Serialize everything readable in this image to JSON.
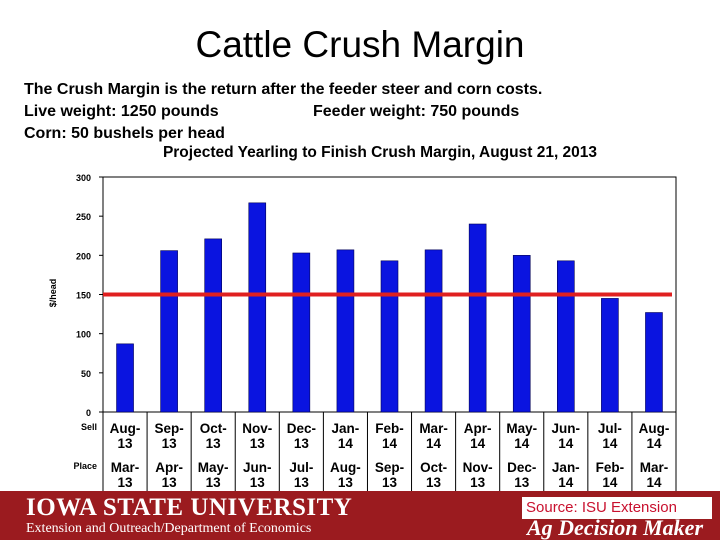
{
  "slide": {
    "title": "Cattle Crush Margin",
    "desc_line1": "The Crush Margin is the return after the feeder steer and corn costs.",
    "desc_live": "Live weight:  1250 pounds",
    "desc_feeder": "Feeder weight:  750 pounds",
    "desc_corn": "Corn:  50 bushels per head"
  },
  "chart_data": {
    "type": "bar",
    "title": "Projected Yearling to Finish Crush Margin, August 21, 2013",
    "ylabel": "$/head",
    "ylim": [
      0,
      300
    ],
    "yticks": [
      0,
      50,
      100,
      150,
      200,
      250,
      300
    ],
    "row_labels": {
      "sell": "Sell",
      "place": "Place"
    },
    "sell_months": [
      [
        "Aug-",
        "13"
      ],
      [
        "Sep-",
        "13"
      ],
      [
        "Oct-",
        "13"
      ],
      [
        "Nov-",
        "13"
      ],
      [
        "Dec-",
        "13"
      ],
      [
        "Jan-",
        "14"
      ],
      [
        "Feb-",
        "14"
      ],
      [
        "Mar-",
        "14"
      ],
      [
        "Apr-",
        "14"
      ],
      [
        "May-",
        "14"
      ],
      [
        "Jun-",
        "14"
      ],
      [
        "Jul-",
        "14"
      ],
      [
        "Aug-",
        "14"
      ]
    ],
    "place_months": [
      [
        "Mar-",
        "13"
      ],
      [
        "Apr-",
        "13"
      ],
      [
        "May-",
        "13"
      ],
      [
        "Jun-",
        "13"
      ],
      [
        "Jul-",
        "13"
      ],
      [
        "Aug-",
        "13"
      ],
      [
        "Sep-",
        "13"
      ],
      [
        "Oct-",
        "13"
      ],
      [
        "Nov-",
        "13"
      ],
      [
        "Dec-",
        "13"
      ],
      [
        "Jan-",
        "14"
      ],
      [
        "Feb-",
        "14"
      ],
      [
        "Mar-",
        "14"
      ]
    ],
    "values": [
      87,
      206,
      221,
      267,
      203,
      207,
      193,
      207,
      240,
      200,
      193,
      145,
      127
    ],
    "reference_line": 150,
    "bar_color": "#0a14e0",
    "line_color": "#e02020"
  },
  "footer": {
    "university": "IOWA STATE UNIVERSITY",
    "department": "Extension and Outreach/Department of Economics",
    "source": "Source: ISU Extension",
    "brand": "Ag Decision Maker"
  }
}
